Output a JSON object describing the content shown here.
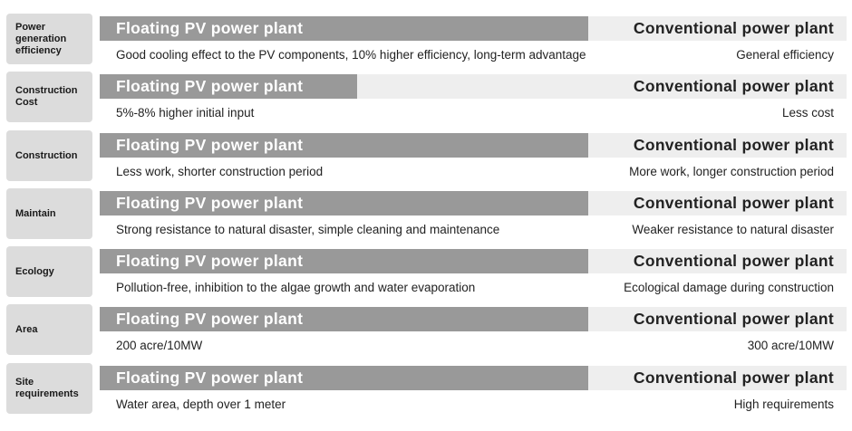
{
  "rows": [
    {
      "category": "Power\ngeneration\nefficiency",
      "left_title": "Floating PV power plant",
      "right_title": "Conventional power plant",
      "left_desc": "Good cooling effect to the PV components, 10% higher efficiency, long-term advantage",
      "right_desc": "General efficiency"
    },
    {
      "category": "Construction\nCost",
      "left_title": "Floating PV power plant",
      "right_title": "Conventional power plant",
      "left_desc": "5%-8% higher initial input",
      "right_desc": "Less cost"
    },
    {
      "category": "Construction",
      "left_title": "Floating PV power plant",
      "right_title": "Conventional power plant",
      "left_desc": "Less work, shorter construction period",
      "right_desc": "More work, longer construction period"
    },
    {
      "category": "Maintain",
      "left_title": "Floating PV power plant",
      "right_title": "Conventional power plant",
      "left_desc": "Strong resistance to natural disaster, simple cleaning and maintenance",
      "right_desc": "Weaker resistance to natural disaster"
    },
    {
      "category": "Ecology",
      "left_title": "Floating PV power plant",
      "right_title": "Conventional power plant",
      "left_desc": "Pollution-free, inhibition to the algae growth and water evaporation",
      "right_desc": "Ecological damage during construction"
    },
    {
      "category": "Area",
      "left_title": "Floating PV power plant",
      "right_title": "Conventional power plant",
      "left_desc": "200 acre/10MW",
      "right_desc": "300 acre/10MW"
    },
    {
      "category": "Site\nrequirements",
      "left_title": "Floating PV power plant",
      "right_title": "Conventional power plant",
      "left_desc": "Water area, depth over 1 meter",
      "right_desc": "High requirements"
    }
  ],
  "colors": {
    "label_bg": "#dcdcdc",
    "bar_fill": "#999999",
    "bar_bg": "#eeeeee"
  }
}
